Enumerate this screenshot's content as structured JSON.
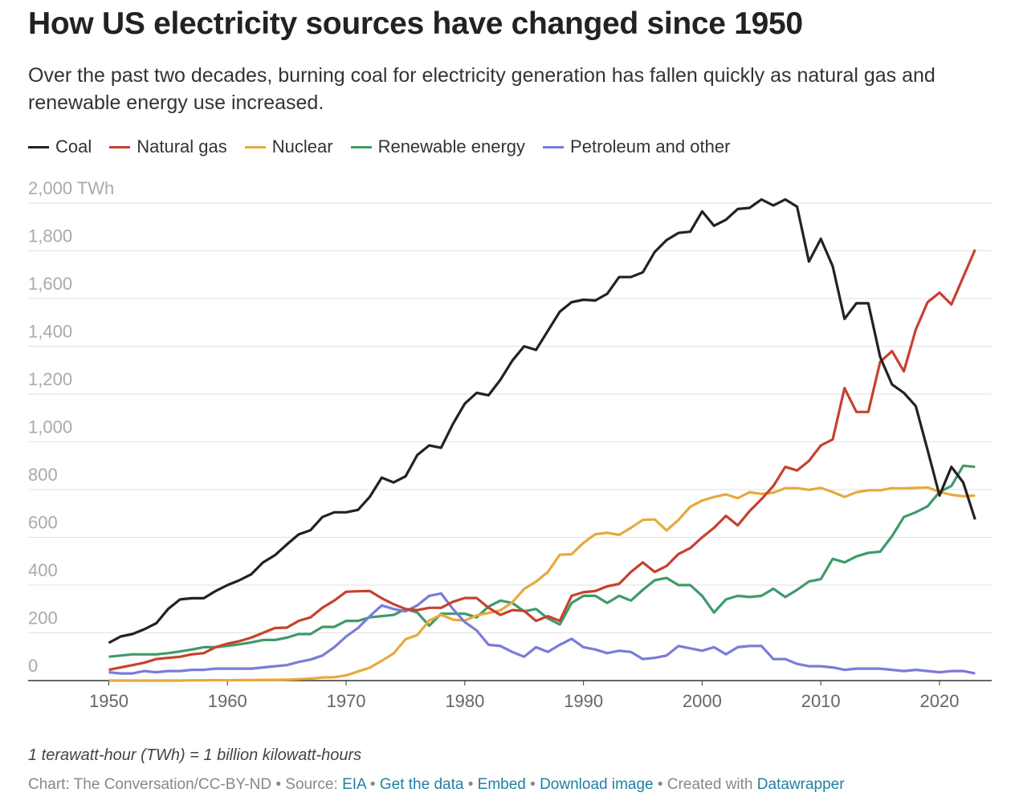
{
  "chart_data": {
    "type": "line",
    "title": "How US electricity sources have changed since 1950",
    "subtitle": "Over the past two decades, burning coal for electricity generation has fallen quickly as natural gas and renewable energy use increased.",
    "note": "1 terawatt-hour (TWh) = 1 billion kilowatt-hours",
    "footer": {
      "credit": "Chart: The Conversation/CC-BY-ND",
      "source_label": "Source:",
      "source": "EIA",
      "separator": "•",
      "links": [
        "Get the data",
        "Embed",
        "Download image"
      ],
      "created_label": "Created with",
      "created_by": "Datawrapper"
    },
    "x": [
      1950,
      1951,
      1952,
      1953,
      1954,
      1955,
      1956,
      1957,
      1958,
      1959,
      1960,
      1961,
      1962,
      1963,
      1964,
      1965,
      1966,
      1967,
      1968,
      1969,
      1970,
      1971,
      1972,
      1973,
      1974,
      1975,
      1976,
      1977,
      1978,
      1979,
      1980,
      1981,
      1982,
      1983,
      1984,
      1985,
      1986,
      1987,
      1988,
      1989,
      1990,
      1991,
      1992,
      1993,
      1994,
      1995,
      1996,
      1997,
      1998,
      1999,
      2000,
      2001,
      2002,
      2003,
      2004,
      2005,
      2006,
      2007,
      2008,
      2009,
      2010,
      2011,
      2012,
      2013,
      2014,
      2015,
      2016,
      2017,
      2018,
      2019,
      2020,
      2021,
      2022,
      2023
    ],
    "xlim": [
      1943.2,
      2024.4
    ],
    "xticks": [
      1950,
      1960,
      1970,
      1980,
      1990,
      2000,
      2010,
      2020
    ],
    "ylim": [
      0,
      2000
    ],
    "yticks": [
      0,
      200,
      400,
      600,
      800,
      {
        "value": 1000,
        "label": "1,000"
      },
      {
        "value": 1200,
        "label": "1,200"
      },
      {
        "value": 1400,
        "label": "1,400"
      },
      {
        "value": 1600,
        "label": "1,600"
      },
      {
        "value": 1800,
        "label": "1,800"
      },
      {
        "value": 2000,
        "label": "2,000 TWh"
      }
    ],
    "grid": true,
    "series": [
      {
        "name": "Coal",
        "color": "#222222",
        "values": [
          158,
          185,
          195,
          215,
          240,
          300,
          340,
          345,
          345,
          375,
          400,
          420,
          445,
          495,
          525,
          570,
          612,
          630,
          685,
          705,
          705,
          715,
          770,
          850,
          830,
          855,
          945,
          985,
          975,
          1075,
          1160,
          1205,
          1195,
          1260,
          1340,
          1400,
          1385,
          1465,
          1545,
          1585,
          1595,
          1592,
          1620,
          1690,
          1690,
          1710,
          1795,
          1845,
          1875,
          1880,
          1965,
          1905,
          1930,
          1975,
          1980,
          2015,
          1990,
          2015,
          1985,
          1755,
          1850,
          1735,
          1515,
          1580,
          1580,
          1355,
          1240,
          1205,
          1150,
          965,
          775,
          895,
          830,
          675
        ]
      },
      {
        "name": "Natural gas",
        "color": "#c7412e",
        "values": [
          45,
          55,
          65,
          75,
          90,
          95,
          100,
          110,
          115,
          140,
          155,
          165,
          180,
          200,
          220,
          222,
          250,
          265,
          305,
          335,
          372,
          374,
          375,
          345,
          320,
          300,
          295,
          305,
          305,
          330,
          346,
          346,
          305,
          275,
          295,
          292,
          250,
          270,
          250,
          355,
          370,
          375,
          395,
          405,
          455,
          495,
          455,
          480,
          530,
          555,
          600,
          640,
          690,
          650,
          710,
          760,
          815,
          895,
          880,
          920,
          985,
          1010,
          1225,
          1125,
          1125,
          1335,
          1380,
          1295,
          1470,
          1585,
          1625,
          1575,
          1690,
          1805
        ]
      },
      {
        "name": "Nuclear",
        "color": "#e8a93c",
        "values": [
          0,
          0,
          0,
          0,
          0,
          0,
          0,
          1,
          1,
          2,
          1,
          2,
          2,
          3,
          3,
          4,
          6,
          8,
          13,
          14,
          22,
          38,
          54,
          83,
          114,
          173,
          191,
          251,
          276,
          255,
          251,
          273,
          283,
          294,
          328,
          384,
          414,
          455,
          527,
          529,
          577,
          613,
          619,
          610,
          640,
          673,
          675,
          629,
          673,
          728,
          754,
          769,
          780,
          764,
          789,
          782,
          787,
          806,
          806,
          799,
          807,
          790,
          769,
          789,
          797,
          797,
          806,
          805,
          807,
          809,
          790,
          778,
          772,
          775
        ]
      },
      {
        "name": "Renewable energy",
        "color": "#3f9a6b",
        "values": [
          100,
          105,
          110,
          110,
          110,
          115,
          122,
          130,
          140,
          140,
          146,
          152,
          160,
          170,
          170,
          180,
          195,
          195,
          225,
          225,
          250,
          250,
          265,
          270,
          275,
          300,
          285,
          230,
          280,
          280,
          280,
          265,
          310,
          335,
          325,
          290,
          300,
          260,
          235,
          325,
          355,
          355,
          325,
          355,
          335,
          380,
          420,
          430,
          400,
          400,
          355,
          285,
          340,
          355,
          350,
          355,
          385,
          350,
          380,
          415,
          425,
          510,
          495,
          520,
          535,
          540,
          605,
          685,
          705,
          730,
          790,
          815,
          900,
          895
        ]
      },
      {
        "name": "Petroleum and other",
        "color": "#7b7bd8",
        "values": [
          35,
          30,
          30,
          40,
          35,
          40,
          40,
          45,
          45,
          50,
          50,
          50,
          50,
          55,
          60,
          65,
          78,
          88,
          105,
          140,
          185,
          220,
          270,
          315,
          300,
          290,
          315,
          355,
          365,
          300,
          245,
          210,
          150,
          145,
          120,
          100,
          140,
          120,
          150,
          175,
          140,
          130,
          115,
          125,
          120,
          90,
          95,
          105,
          145,
          135,
          125,
          140,
          110,
          140,
          145,
          145,
          90,
          90,
          70,
          60,
          60,
          55,
          45,
          50,
          50,
          50,
          45,
          40,
          45,
          40,
          35,
          40,
          40,
          30
        ]
      }
    ]
  }
}
